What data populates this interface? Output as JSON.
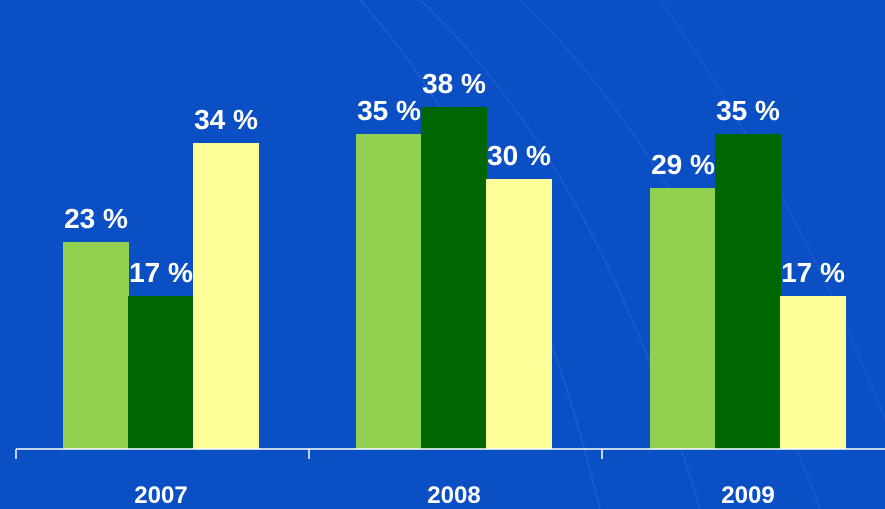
{
  "chart_data": {
    "type": "bar",
    "categories": [
      "2007",
      "2008",
      "2009"
    ],
    "series": [
      {
        "values": [
          23,
          35,
          29
        ],
        "color": "#92d050"
      },
      {
        "values": [
          17,
          38,
          35
        ],
        "color": "#006600"
      },
      {
        "values": [
          34,
          30,
          17
        ],
        "color": "#ffff99"
      }
    ],
    "value_suffix": " %",
    "ylim": [
      0,
      45
    ],
    "grid": false,
    "legend": "none",
    "colors": {
      "background": "#0a4fc4",
      "axis": "#ffffff",
      "text": "#ffffff"
    }
  }
}
